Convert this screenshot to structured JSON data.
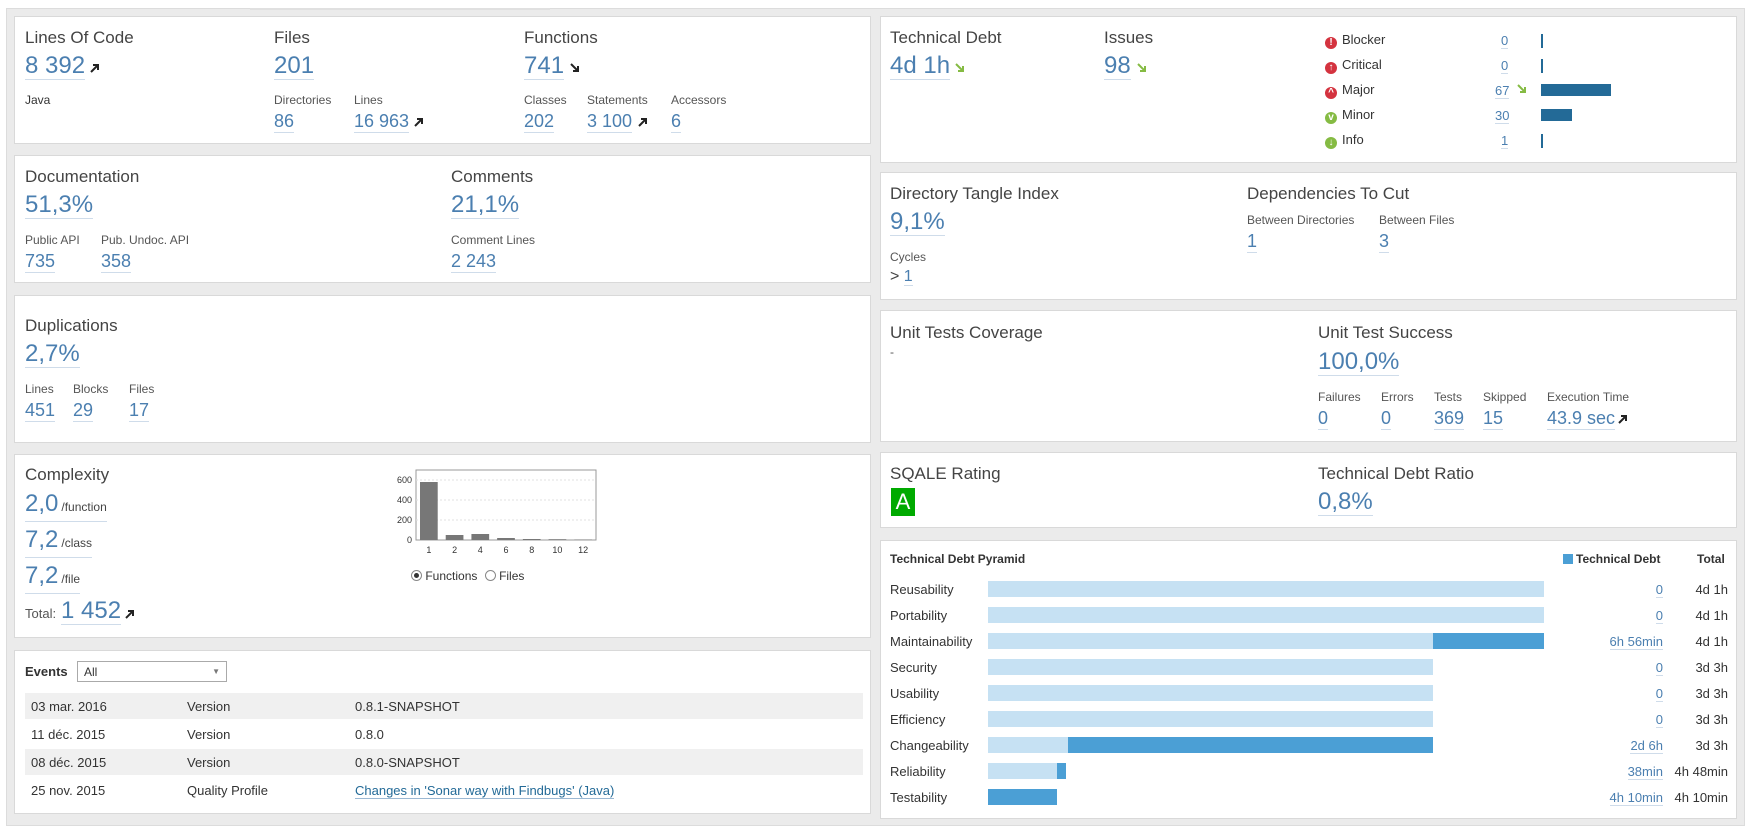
{
  "size": {
    "lines_of_code_label": "Lines Of Code",
    "lines_of_code": "8 392",
    "language": "Java",
    "files_label": "Files",
    "files": "201",
    "directories_label": "Directories",
    "directories": "86",
    "lines_label": "Lines",
    "lines": "16 963",
    "functions_label": "Functions",
    "functions": "741",
    "classes_label": "Classes",
    "classes": "202",
    "statements_label": "Statements",
    "statements": "3 100",
    "accessors_label": "Accessors",
    "accessors": "6"
  },
  "documentation": {
    "label": "Documentation",
    "value": "51,3%",
    "public_api_label": "Public API",
    "public_api": "735",
    "pub_undoc_label": "Pub. Undoc. API",
    "pub_undoc": "358",
    "comments_label": "Comments",
    "comments": "21,1%",
    "comment_lines_label": "Comment Lines",
    "comment_lines": "2 243"
  },
  "duplications": {
    "label": "Duplications",
    "value": "2,7%",
    "lines_label": "Lines",
    "lines": "451",
    "blocks_label": "Blocks",
    "blocks": "29",
    "files_label": "Files",
    "files": "17"
  },
  "complexity": {
    "label": "Complexity",
    "per_function": "2,0",
    "per_function_unit": "/function",
    "per_class": "7,2",
    "per_class_unit": "/class",
    "per_file": "7,2",
    "per_file_unit": "/file",
    "total_label": "Total:",
    "total": "1 452",
    "radio_functions": "Functions",
    "radio_files": "Files",
    "selected_radio": "Functions"
  },
  "chart_data": {
    "type": "bar",
    "categories": [
      "1",
      "2",
      "4",
      "6",
      "8",
      "10",
      "12"
    ],
    "values": [
      580,
      50,
      60,
      20,
      10,
      8,
      5
    ],
    "y_ticks": [
      "0",
      "200",
      "400",
      "600"
    ],
    "ylim": [
      0,
      700
    ],
    "grid": true,
    "bar_color": "#777777"
  },
  "events": {
    "label": "Events",
    "filter_value": "All",
    "rows": [
      {
        "date": "03 mar. 2016",
        "type": "Version",
        "name": "0.8.1-SNAPSHOT"
      },
      {
        "date": "11 déc. 2015",
        "type": "Version",
        "name": "0.8.0"
      },
      {
        "date": "08 déc. 2015",
        "type": "Version",
        "name": "0.8.0-SNAPSHOT"
      },
      {
        "date": "25 nov. 2015",
        "type": "Quality Profile",
        "name": "Changes in 'Sonar way with Findbugs' (Java)"
      }
    ]
  },
  "debt": {
    "technical_debt_label": "Technical Debt",
    "technical_debt": "4d 1h",
    "issues_label": "Issues",
    "issues": "98",
    "severities": [
      {
        "name": "Blocker",
        "count": "0",
        "color": "#d4333f",
        "icon": "blocker-icon",
        "bar": 0
      },
      {
        "name": "Critical",
        "count": "0",
        "color": "#d4333f",
        "icon": "critical-icon",
        "bar": 0
      },
      {
        "name": "Major",
        "count": "67",
        "color": "#d4333f",
        "icon": "major-icon",
        "bar": 67
      },
      {
        "name": "Minor",
        "count": "30",
        "color": "#85bb43",
        "icon": "minor-icon",
        "bar": 30
      },
      {
        "name": "Info",
        "count": "1",
        "color": "#85bb43",
        "icon": "info-icon",
        "bar": 1
      }
    ]
  },
  "design": {
    "tangle_label": "Directory Tangle Index",
    "tangle": "9,1%",
    "cycles_label": "Cycles",
    "cycles_prefix": "> ",
    "cycles": "1",
    "deps_label": "Dependencies To Cut",
    "between_dirs_label": "Between Directories",
    "between_dirs": "1",
    "between_files_label": "Between Files",
    "between_files": "3"
  },
  "tests": {
    "coverage_label": "Unit Tests Coverage",
    "coverage": "-",
    "success_label": "Unit Test Success",
    "success": "100,0%",
    "failures_label": "Failures",
    "failures": "0",
    "errors_label": "Errors",
    "errors": "0",
    "tests_label": "Tests",
    "tests": "369",
    "skipped_label": "Skipped",
    "skipped": "15",
    "exec_label": "Execution Time",
    "exec": "43.9 sec"
  },
  "sqale": {
    "rating_label": "SQALE Rating",
    "rating": "A",
    "rating_color": "#00aa00",
    "ratio_label": "Technical Debt Ratio",
    "ratio": "0,8%"
  },
  "pyramid": {
    "title": "Technical Debt Pyramid",
    "legend_label": "Technical Debt",
    "total_header": "Total",
    "light_color": "#c6e1f3",
    "dark_color": "#4b9fd5",
    "rows": [
      {
        "name": "Reusability",
        "debt": "0",
        "total": "4d 1h",
        "total_fraction": 1.0,
        "debt_fraction": 0.0
      },
      {
        "name": "Portability",
        "debt": "0",
        "total": "4d 1h",
        "total_fraction": 1.0,
        "debt_fraction": 0.0
      },
      {
        "name": "Maintainability",
        "debt": "6h 56min",
        "total": "4d 1h",
        "total_fraction": 1.0,
        "debt_fraction": 0.2
      },
      {
        "name": "Security",
        "debt": "0",
        "total": "3d 3h",
        "total_fraction": 0.8,
        "debt_fraction": 0.0
      },
      {
        "name": "Usability",
        "debt": "0",
        "total": "3d 3h",
        "total_fraction": 0.8,
        "debt_fraction": 0.0
      },
      {
        "name": "Efficiency",
        "debt": "0",
        "total": "3d 3h",
        "total_fraction": 0.8,
        "debt_fraction": 0.0
      },
      {
        "name": "Changeability",
        "debt": "2d 6h",
        "total": "3d 3h",
        "total_fraction": 0.8,
        "debt_fraction": 0.657
      },
      {
        "name": "Reliability",
        "debt": "38min",
        "total": "4h 48min",
        "total_fraction": 0.14,
        "debt_fraction": 0.016
      },
      {
        "name": "Testability",
        "debt": "4h 10min",
        "total": "4h 10min",
        "total_fraction": 0.124,
        "debt_fraction": 0.124
      }
    ]
  }
}
